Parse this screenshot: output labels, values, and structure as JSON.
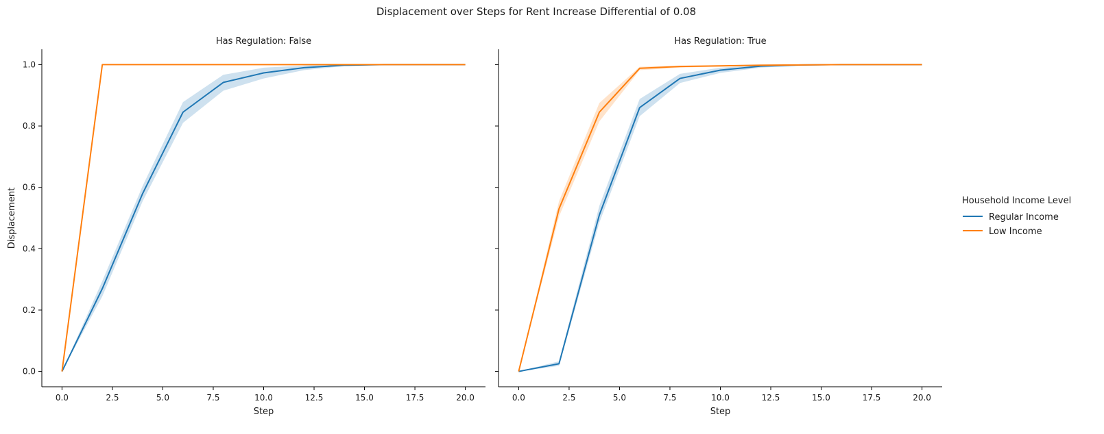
{
  "chart_data": {
    "type": "line",
    "title": "Displacement over Steps for Rent Increase Differential of 0.08",
    "xlabel": "Step",
    "ylabel": "Displacement",
    "xlim": [
      -1.0,
      21.0
    ],
    "ylim": [
      -0.05,
      1.05
    ],
    "xticks": [
      0.0,
      2.5,
      5.0,
      7.5,
      10.0,
      12.5,
      15.0,
      17.5,
      20.0
    ],
    "xtick_labels": [
      "0.0",
      "2.5",
      "5.0",
      "7.5",
      "10.0",
      "12.5",
      "15.0",
      "17.5",
      "20.0"
    ],
    "yticks": [
      0.0,
      0.2,
      0.4,
      0.6,
      0.8,
      1.0
    ],
    "ytick_labels": [
      "0.0",
      "0.2",
      "0.4",
      "0.6",
      "0.8",
      "1.0"
    ],
    "grid": false,
    "legend": {
      "title": "Household Income Level",
      "placement": "right",
      "entries": [
        {
          "name": "Regular Income",
          "color": "#1f77b4"
        },
        {
          "name": "Low Income",
          "color": "#ff7f0e"
        }
      ]
    },
    "panels": [
      {
        "title": "Has Regulation: False",
        "series": [
          {
            "name": "Regular Income",
            "color": "#1f77b4",
            "x": [
              0,
              2,
              4,
              6,
              8,
              10,
              12,
              14,
              16,
              18,
              20
            ],
            "y": [
              0.0,
              0.27,
              0.58,
              0.845,
              0.942,
              0.973,
              0.99,
              0.998,
              1.0,
              1.0,
              1.0
            ],
            "ci_low": [
              0.0,
              0.245,
              0.555,
              0.81,
              0.915,
              0.955,
              0.982,
              0.995,
              0.999,
              1.0,
              1.0
            ],
            "ci_high": [
              0.0,
              0.295,
              0.605,
              0.878,
              0.967,
              0.99,
              0.997,
              1.0,
              1.0,
              1.0,
              1.0
            ]
          },
          {
            "name": "Low Income",
            "color": "#ff7f0e",
            "x": [
              0,
              2,
              4,
              6,
              8,
              10,
              12,
              14,
              16,
              18,
              20
            ],
            "y": [
              0.0,
              1.0,
              1.0,
              1.0,
              1.0,
              1.0,
              1.0,
              1.0,
              1.0,
              1.0,
              1.0
            ],
            "ci_low": [
              0.0,
              1.0,
              1.0,
              1.0,
              1.0,
              1.0,
              1.0,
              1.0,
              1.0,
              1.0,
              1.0
            ],
            "ci_high": [
              0.0,
              1.0,
              1.0,
              1.0,
              1.0,
              1.0,
              1.0,
              1.0,
              1.0,
              1.0,
              1.0
            ]
          }
        ]
      },
      {
        "title": "Has Regulation: True",
        "series": [
          {
            "name": "Regular Income",
            "color": "#1f77b4",
            "x": [
              0,
              2,
              4,
              6,
              8,
              10,
              12,
              14,
              16,
              18,
              20
            ],
            "y": [
              0.0,
              0.025,
              0.51,
              0.86,
              0.955,
              0.982,
              0.995,
              0.999,
              1.0,
              1.0,
              1.0
            ],
            "ci_low": [
              0.0,
              0.018,
              0.485,
              0.832,
              0.94,
              0.973,
              0.99,
              0.997,
              1.0,
              1.0,
              1.0
            ],
            "ci_high": [
              0.0,
              0.033,
              0.54,
              0.888,
              0.97,
              0.99,
              0.998,
              1.0,
              1.0,
              1.0,
              1.0
            ]
          },
          {
            "name": "Low Income",
            "color": "#ff7f0e",
            "x": [
              0,
              2,
              4,
              6,
              8,
              10,
              12,
              14,
              16,
              18,
              20
            ],
            "y": [
              0.0,
              0.53,
              0.845,
              0.988,
              0.994,
              0.996,
              0.998,
              0.999,
              1.0,
              1.0,
              1.0
            ],
            "ci_low": [
              0.0,
              0.505,
              0.815,
              0.982,
              0.99,
              0.994,
              0.996,
              0.998,
              0.999,
              1.0,
              1.0
            ],
            "ci_high": [
              0.0,
              0.555,
              0.875,
              0.993,
              0.997,
              0.998,
              0.999,
              1.0,
              1.0,
              1.0,
              1.0
            ]
          }
        ]
      }
    ]
  }
}
